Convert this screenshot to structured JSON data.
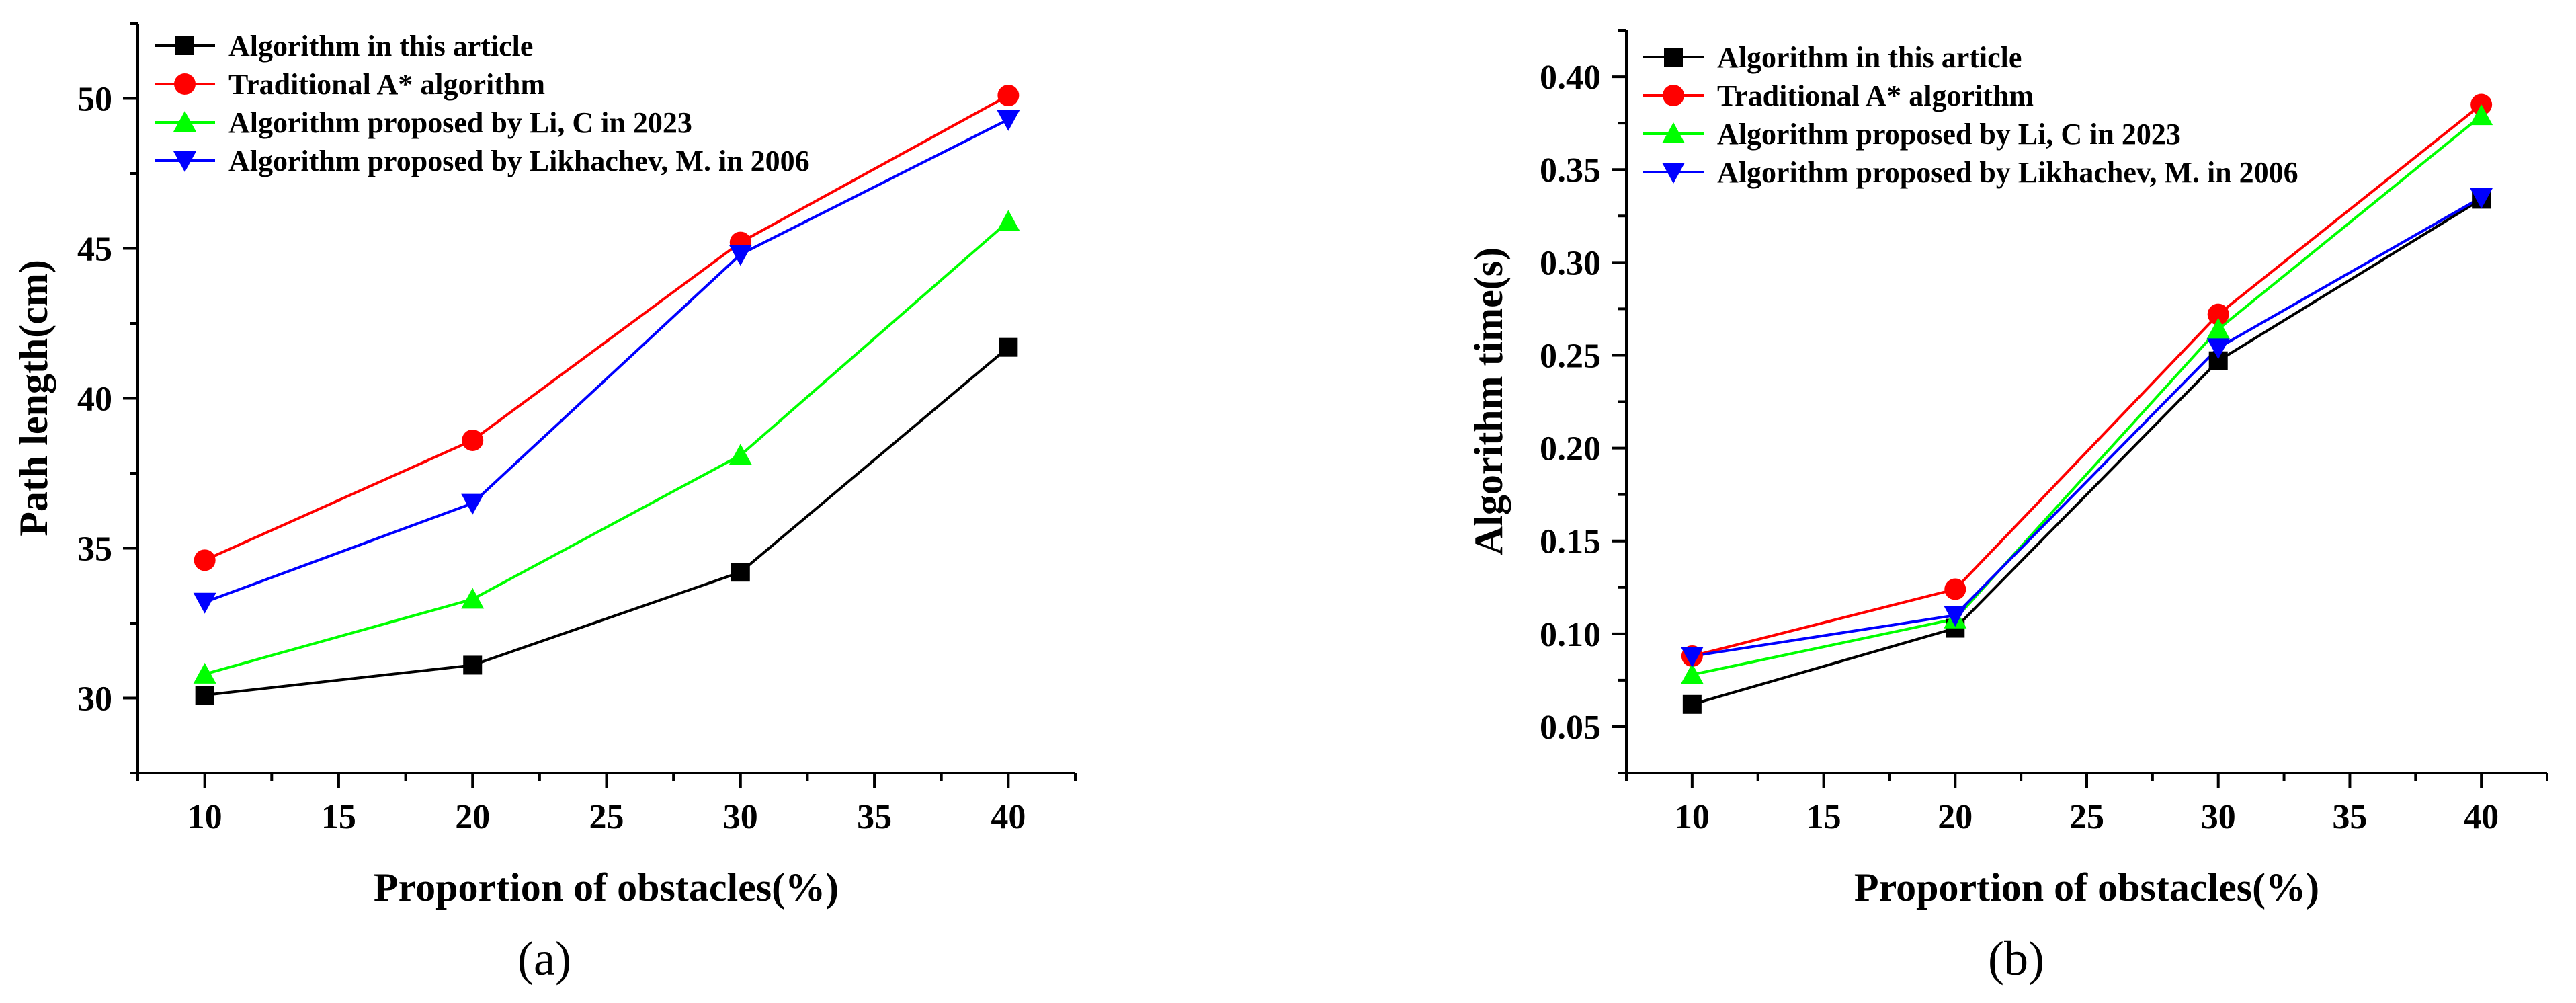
{
  "chart_data": [
    {
      "type": "line",
      "panel_label": "(a)",
      "xlabel": "Proportion of obstacles(%)",
      "ylabel": "Path length(cm)",
      "x": [
        10,
        20,
        30,
        40
      ],
      "xlim": [
        7.5,
        42.5
      ],
      "ylim": [
        27.5,
        52.5
      ],
      "xticks": [
        10,
        15,
        20,
        25,
        30,
        35,
        40
      ],
      "yticks": [
        30,
        35,
        40,
        45,
        50
      ],
      "yformat": 0,
      "legend_position": "top-left",
      "series": [
        {
          "name": "Algorithm in this article",
          "color": "#000000",
          "marker": "square",
          "values": [
            30.1,
            31.1,
            34.2,
            41.7
          ]
        },
        {
          "name": "Traditional A* algorithm",
          "color": "#ff0000",
          "marker": "circle",
          "values": [
            34.6,
            38.6,
            45.2,
            50.1
          ]
        },
        {
          "name": "Algorithm proposed by Li, C in 2023",
          "color": "#00ff00",
          "marker": "triangle-up",
          "values": [
            30.8,
            33.3,
            38.1,
            45.9
          ]
        },
        {
          "name": "Algorithm proposed by Likhachev, M. in 2006",
          "color": "#0000ff",
          "marker": "triangle-down",
          "values": [
            33.2,
            36.5,
            44.8,
            49.3
          ]
        }
      ]
    },
    {
      "type": "line",
      "panel_label": "(b)",
      "xlabel": "Proportion of obstacles(%)",
      "ylabel": "Algorithm time(s)",
      "x": [
        10,
        20,
        30,
        40
      ],
      "xlim": [
        7.5,
        42.5
      ],
      "ylim": [
        0.025,
        0.425
      ],
      "xticks": [
        10,
        15,
        20,
        25,
        30,
        35,
        40
      ],
      "yticks": [
        0.05,
        0.1,
        0.15,
        0.2,
        0.25,
        0.3,
        0.35,
        0.4
      ],
      "yformat": 2,
      "legend_position": "top-left",
      "series": [
        {
          "name": "Algorithm in this article",
          "color": "#000000",
          "marker": "square",
          "values": [
            0.062,
            0.103,
            0.247,
            0.334
          ]
        },
        {
          "name": "Traditional A* algorithm",
          "color": "#ff0000",
          "marker": "circle",
          "values": [
            0.088,
            0.124,
            0.272,
            0.385
          ]
        },
        {
          "name": "Algorithm proposed by Li, C in 2023",
          "color": "#00ff00",
          "marker": "triangle-up",
          "values": [
            0.078,
            0.108,
            0.264,
            0.379
          ]
        },
        {
          "name": "Algorithm proposed by Likhachev, M. in 2006",
          "color": "#0000ff",
          "marker": "triangle-down",
          "values": [
            0.088,
            0.11,
            0.254,
            0.335
          ]
        }
      ]
    }
  ]
}
